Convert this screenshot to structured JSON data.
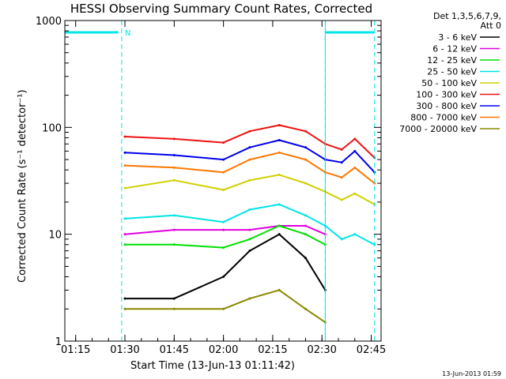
{
  "chart_data": {
    "type": "line",
    "title": "HESSI Observing Summary Count Rates, Corrected",
    "xlabel": "Start Time (13-Jun-13 01:11:42)",
    "ylabel": "Corrected Count Rate (s⁻¹ detector⁻¹)",
    "y_scale": "log",
    "ylim": [
      1,
      1000
    ],
    "xlim": [
      "01:11:42",
      "02:48:00"
    ],
    "x_ticks": [
      "01:15",
      "01:30",
      "01:45",
      "02:00",
      "02:15",
      "02:30",
      "02:45"
    ],
    "y_ticks": [
      "1",
      "10",
      "100",
      "1000"
    ],
    "grid": false,
    "legend_position": "right",
    "legend_header": [
      "Det 1,3,5,6,7,9,",
      "Att 0"
    ],
    "footer_stamp": "13-Jun-2013 01:59",
    "markers": {
      "night_bars": [
        [
          "01:11:42",
          "01:28:00"
        ],
        [
          "02:31:00",
          "02:46:00"
        ]
      ],
      "saa_label": "N",
      "dashed_lines": [
        "01:29:00",
        "02:31:00",
        "02:46:00"
      ],
      "solid_line": "02:31:00",
      "color": "#00e5e5"
    },
    "x": [
      "01:30",
      "01:45",
      "02:00",
      "02:08",
      "02:17",
      "02:25",
      "02:31",
      "02:36",
      "02:40",
      "02:46"
    ],
    "series": [
      {
        "name": "3 - 6 keV",
        "color": "#000000",
        "values": [
          2.5,
          2.5,
          4,
          7,
          10,
          6,
          3,
          null,
          null,
          null
        ]
      },
      {
        "name": "6 - 12 keV",
        "color": "#e000e0",
        "values": [
          10,
          11,
          11,
          11,
          12,
          12,
          10,
          null,
          null,
          null
        ]
      },
      {
        "name": "12 - 25 keV",
        "color": "#00e000",
        "values": [
          8,
          8,
          7.5,
          9,
          12,
          10,
          8,
          null,
          null,
          null
        ]
      },
      {
        "name": "25 - 50 keV",
        "color": "#00e5e5",
        "values": [
          14,
          15,
          13,
          17,
          19,
          15,
          12,
          9,
          10,
          8
        ]
      },
      {
        "name": "50 - 100 keV",
        "color": "#d0d000",
        "values": [
          27,
          32,
          26,
          32,
          36,
          30,
          25,
          21,
          24,
          19
        ]
      },
      {
        "name": "100 - 300 keV",
        "color": "#ee1111",
        "values": [
          82,
          78,
          72,
          92,
          105,
          92,
          70,
          62,
          78,
          52
        ]
      },
      {
        "name": "300 - 800 keV",
        "color": "#0000ee",
        "values": [
          58,
          55,
          50,
          65,
          76,
          65,
          50,
          47,
          60,
          38
        ]
      },
      {
        "name": "800 - 7000 keV",
        "color": "#ff7700",
        "values": [
          44,
          42,
          38,
          50,
          58,
          50,
          38,
          34,
          42,
          30
        ]
      },
      {
        "name": "7000 - 20000 keV",
        "color": "#888800",
        "values": [
          2,
          2,
          2,
          2.5,
          3,
          2,
          1.5,
          null,
          null,
          null
        ]
      }
    ]
  }
}
